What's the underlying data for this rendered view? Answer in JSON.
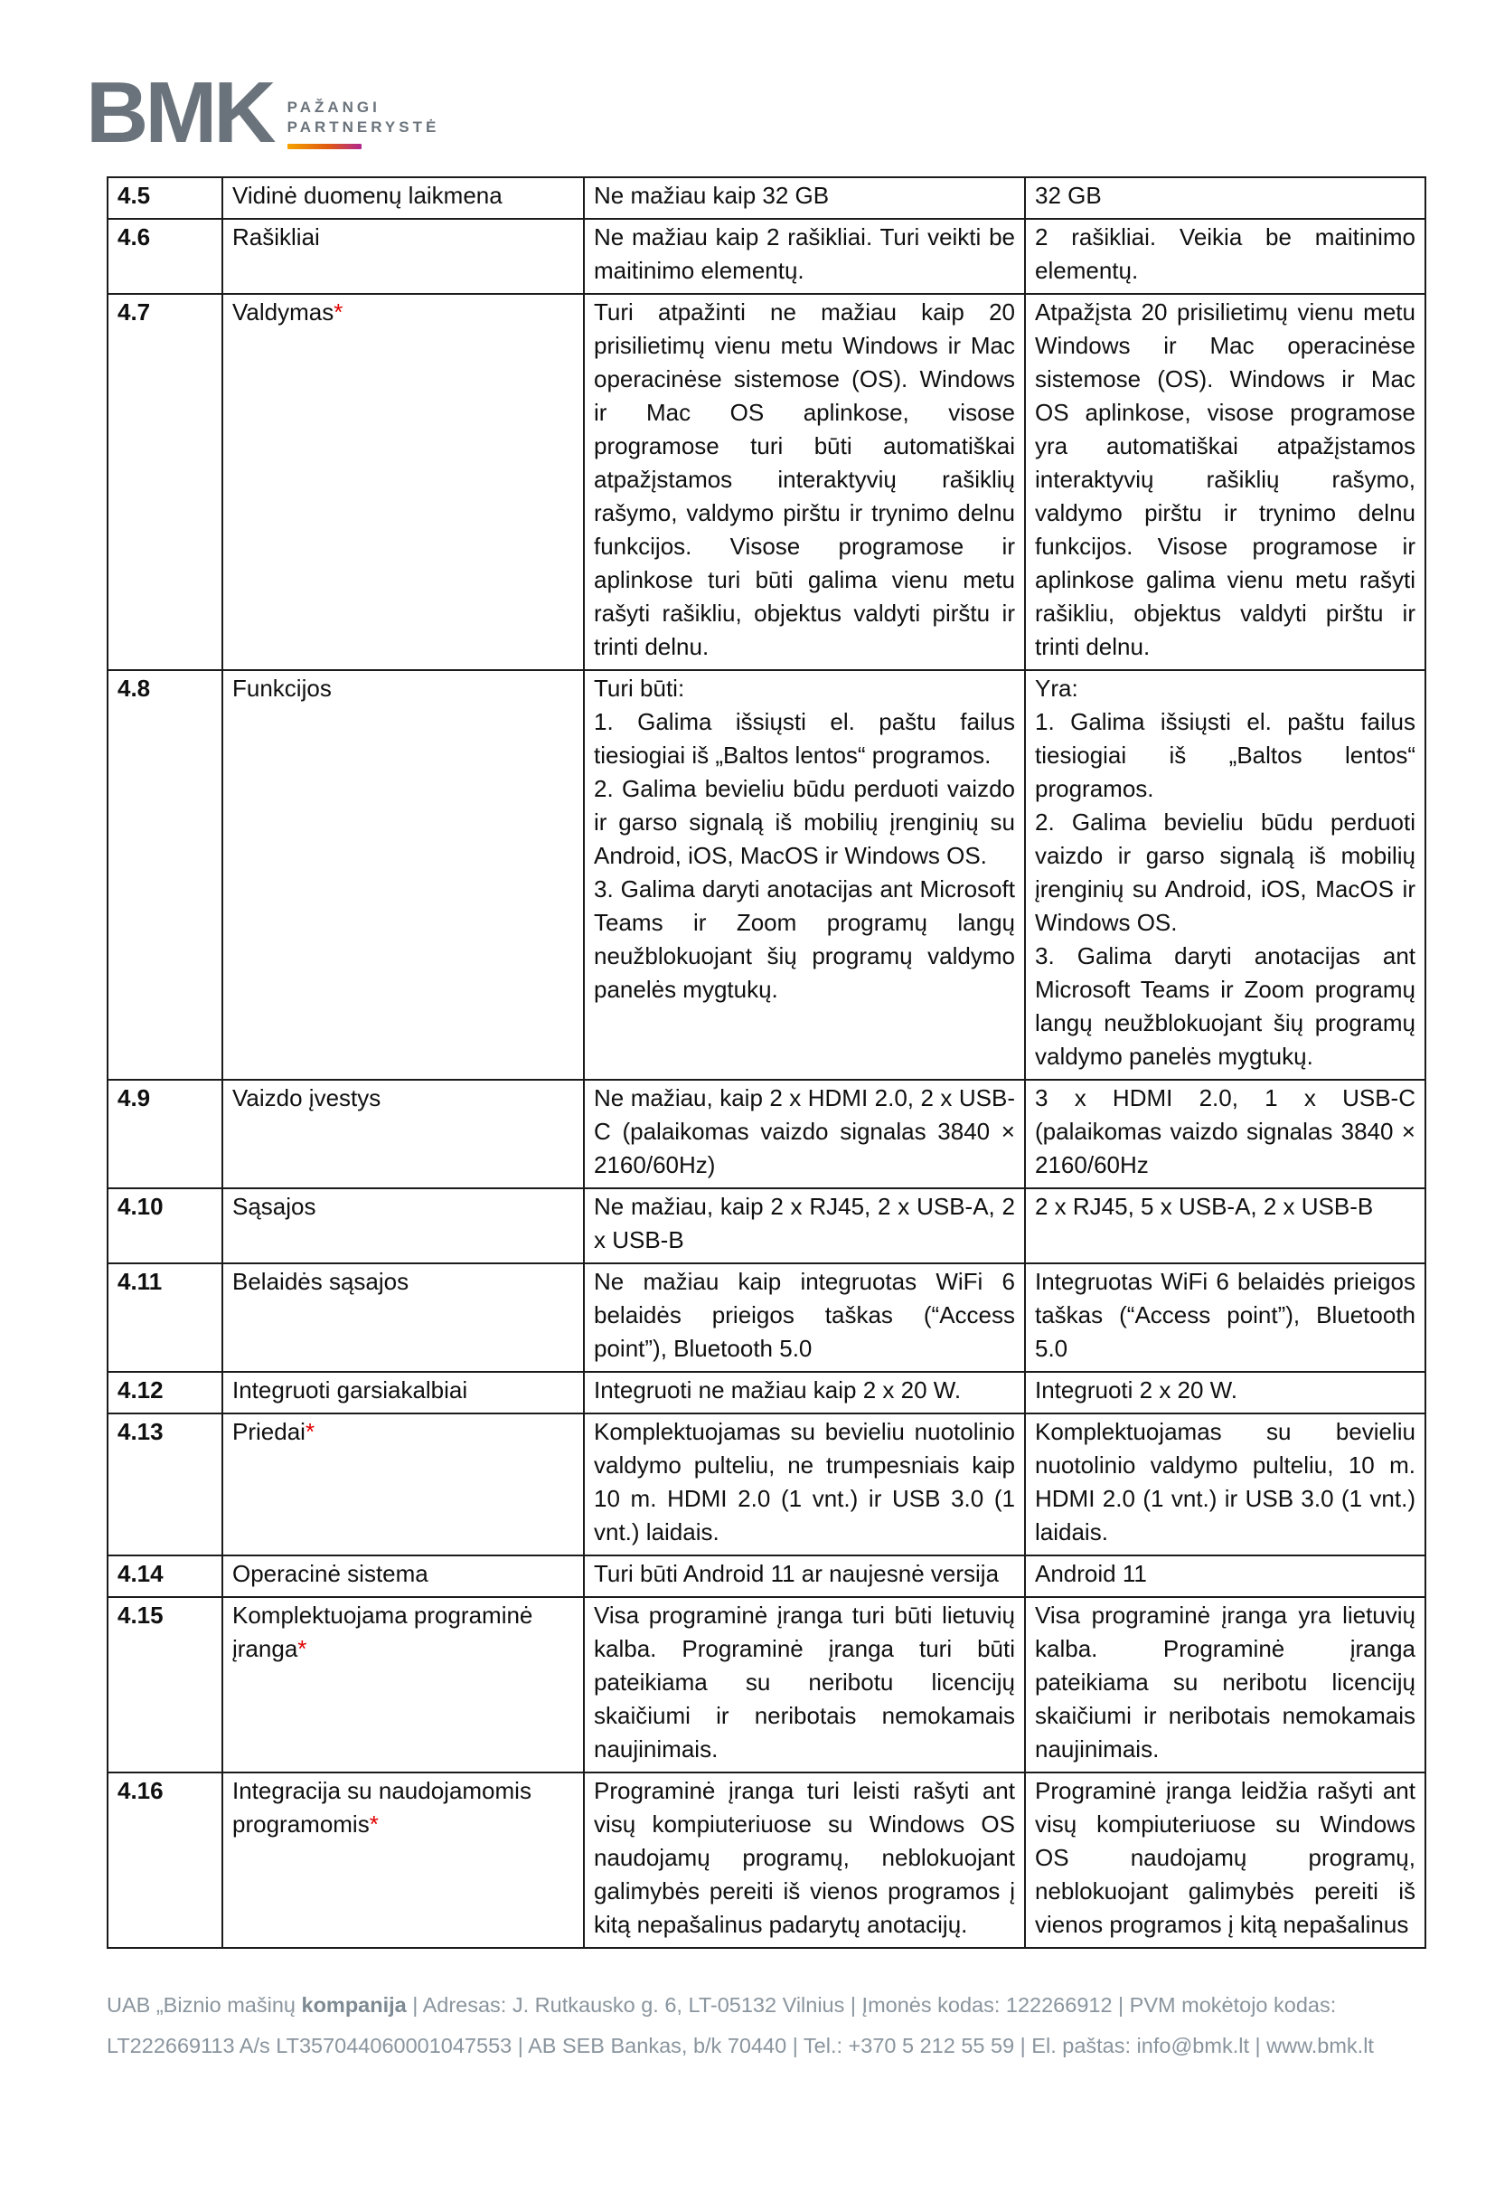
{
  "logo": {
    "brand": "BMK",
    "tagline1": "PAŽANGI",
    "tagline2": "PARTNERYSTĖ"
  },
  "colors": {
    "logo_gray": "#6A737B",
    "asterisk_red": "#E00000",
    "footer_gray": "#8A959E",
    "logo_gradient_start": "#F5A200",
    "logo_gradient_end": "#B1268E"
  },
  "table": {
    "rows": [
      {
        "id": "4.5",
        "name": "Vidinė duomenų laikmena",
        "star": "",
        "requirement": "Ne mažiau kaip 32 GB",
        "offer": "32 GB"
      },
      {
        "id": "4.6",
        "name": "Rašikliai",
        "star": "",
        "requirement": "Ne mažiau kaip 2 rašikliai. Turi veikti be maitinimo elementų.",
        "offer": "2 rašikliai. Veikia be maitinimo elementų."
      },
      {
        "id": "4.7",
        "name": "Valdymas",
        "star": "*",
        "requirement": "Turi atpažinti ne mažiau kaip 20 prisilietimų vienu metu Windows ir Mac operacinėse sistemose (OS). Windows ir Mac OS aplinkose, visose programose turi būti automatiškai atpažįstamos interaktyvių rašiklių rašymo, valdymo pirštu ir trynimo delnu funkcijos. Visose programose ir aplinkose turi būti galima vienu metu rašyti rašikliu, objektus valdyti pirštu ir trinti delnu.",
        "offer": "Atpažįsta 20 prisilietimų vienu metu Windows ir Mac operacinėse sistemose (OS). Windows ir Mac OS aplinkose, visose programose yra automatiškai atpažįstamos interaktyvių rašiklių rašymo, valdymo pirštu ir trynimo delnu funkcijos. Visose programose ir aplinkose galima vienu metu rašyti rašikliu, objektus valdyti pirštu ir trinti delnu."
      },
      {
        "id": "4.8",
        "name": "Funkcijos",
        "star": "",
        "requirement": "Turi būti:\n1. Galima išsiųsti el. paštu failus tiesiogiai iš „Baltos lentos“ programos.\n2. Galima bevieliu būdu perduoti vaizdo ir garso signalą iš mobilių įrenginių su Android, iOS, MacOS ir Windows OS.\n3. Galima daryti anotacijas ant Microsoft Teams ir Zoom programų langų  neužblokuojant šių programų valdymo panelės mygtukų.",
        "offer": "Yra:\n1. Galima išsiųsti el. paštu failus tiesiogiai iš „Baltos lentos“ programos.\n2. Galima bevieliu būdu perduoti vaizdo ir garso signalą iš mobilių įrenginių su Android, iOS, MacOS ir Windows OS.\n3. Galima daryti anotacijas ant Microsoft Teams ir Zoom programų langų neužblokuojant šių programų valdymo panelės mygtukų."
      },
      {
        "id": "4.9",
        "name": "Vaizdo įvestys",
        "star": "",
        "requirement": "Ne mažiau, kaip 2 x HDMI 2.0, 2 x USB-C (palaikomas vaizdo signalas 3840 × 2160/60Hz)",
        "offer": "3 x HDMI 2.0, 1 x USB-C (palaikomas vaizdo signalas 3840 × 2160/60Hz"
      },
      {
        "id": "4.10",
        "name": "Sąsajos",
        "star": "",
        "requirement": "Ne mažiau, kaip 2 x RJ45, 2 x USB-A, 2 x USB-B",
        "offer": "2 x RJ45, 5 x USB-A,  2 x USB-B"
      },
      {
        "id": "4.11",
        "name": "Belaidės sąsajos",
        "star": "",
        "requirement": "Ne mažiau kaip integruotas WiFi 6 belaidės prieigos taškas (“Access point”), Bluetooth 5.0",
        "offer": "Integruotas WiFi 6 belaidės prieigos taškas (“Access point”), Bluetooth 5.0"
      },
      {
        "id": "4.12",
        "name": "Integruoti garsiakalbiai",
        "star": "",
        "requirement": "Integruoti ne mažiau kaip 2 x 20 W.",
        "offer": "Integruoti 2 x 20 W."
      },
      {
        "id": "4.13",
        "name": "Priedai",
        "star": "*",
        "requirement": "Komplektuojamas su bevieliu nuotolinio valdymo pulteliu, ne trumpesniais kaip 10 m. HDMI 2.0 (1 vnt.) ir USB 3.0 (1 vnt.) laidais.",
        "offer": "Komplektuojamas su bevieliu nuotolinio valdymo pulteliu, 10 m. HDMI 2.0 (1 vnt.) ir USB 3.0 (1 vnt.) laidais."
      },
      {
        "id": "4.14",
        "name": "Operacinė sistema",
        "star": "",
        "requirement": "Turi būti Android 11 ar naujesnė versija",
        "offer": "Android 11"
      },
      {
        "id": "4.15",
        "name": "Komplektuojama programinė įranga",
        "star": "*",
        "requirement": "Visa programinė įranga turi būti lietuvių kalba. Programinė įranga turi būti pateikiama su neribotu licencijų skaičiumi ir neribotais nemokamais naujinimais.",
        "offer": "Visa programinė įranga yra lietuvių kalba. Programinė įranga pateikiama su neribotu licencijų skaičiumi ir neribotais nemokamais naujinimais."
      },
      {
        "id": "4.16",
        "name": "Integracija su naudojamomis programomis",
        "star": "*",
        "requirement": "Programinė įranga turi leisti rašyti ant visų kompiuteriuose su Windows OS naudojamų programų, neblokuojant galimybės pereiti iš vienos programos į kitą nepašalinus padarytų anotacijų.",
        "offer": "Programinė įranga leidžia rašyti ant visų kompiuteriuose su Windows OS naudojamų programų, neblokuojant galimybės pereiti iš vienos programos į kitą nepašalinus"
      }
    ]
  },
  "footer": {
    "line1_prefix": "UAB „Biznio mašinų ",
    "line1_bold": "kompanija",
    "line1_rest": "  |  Adresas: J. Rutkausko g. 6, LT-05132 Vilnius  |  Įmonės kodas: 122266912  |  PVM mokėtojo kodas:",
    "line2": "LT222669113 A/s LT357044060001047553  |  AB SEB Bankas, b/k 70440  |  Tel.: +370 5 212 55 59 | El. paštas: info@bmk.lt | www.bmk.lt"
  }
}
